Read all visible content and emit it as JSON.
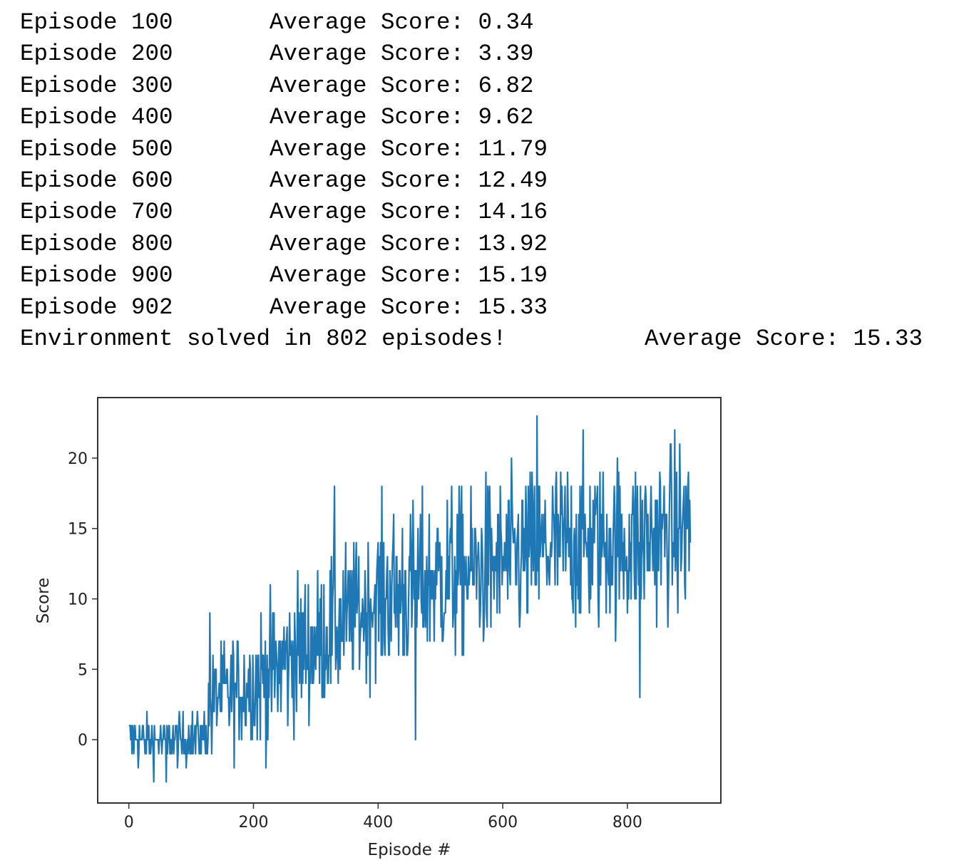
{
  "log": {
    "lines": [
      {
        "episode": "Episode 100",
        "avg": "Average Score: 0.34"
      },
      {
        "episode": "Episode 200",
        "avg": "Average Score: 3.39"
      },
      {
        "episode": "Episode 300",
        "avg": "Average Score: 6.82"
      },
      {
        "episode": "Episode 400",
        "avg": "Average Score: 9.62"
      },
      {
        "episode": "Episode 500",
        "avg": "Average Score: 11.79"
      },
      {
        "episode": "Episode 600",
        "avg": "Average Score: 12.49"
      },
      {
        "episode": "Episode 700",
        "avg": "Average Score: 14.16"
      },
      {
        "episode": "Episode 800",
        "avg": "Average Score: 13.92"
      },
      {
        "episode": "Episode 900",
        "avg": "Average Score: 15.19"
      },
      {
        "episode": "Episode 902",
        "avg": "Average Score: 15.33"
      }
    ],
    "solved": {
      "text": "Environment solved in 802 episodes!",
      "avg": "Average Score: 15.33"
    }
  },
  "chart_data": {
    "type": "line",
    "title": "",
    "xlabel": "Episode #",
    "ylabel": "Score",
    "xlim": [
      -50,
      950
    ],
    "ylim": [
      -4.5,
      24.3
    ],
    "xticks": [
      0,
      200,
      400,
      600,
      800
    ],
    "yticks": [
      0,
      5,
      10,
      15,
      20
    ],
    "grid": false,
    "series_color": "#1f77b4",
    "n_points": 902,
    "trend": [
      [
        0,
        0
      ],
      [
        60,
        -0.2
      ],
      [
        120,
        0.3
      ],
      [
        140,
        3
      ],
      [
        200,
        4
      ],
      [
        300,
        7
      ],
      [
        400,
        10
      ],
      [
        500,
        11.5
      ],
      [
        600,
        12.5
      ],
      [
        700,
        14
      ],
      [
        800,
        14
      ],
      [
        901,
        15
      ]
    ],
    "notable": [
      [
        60,
        -3
      ],
      [
        460,
        0
      ],
      [
        655,
        23
      ],
      [
        130,
        9
      ],
      [
        330,
        18
      ],
      [
        820,
        3
      ]
    ]
  }
}
